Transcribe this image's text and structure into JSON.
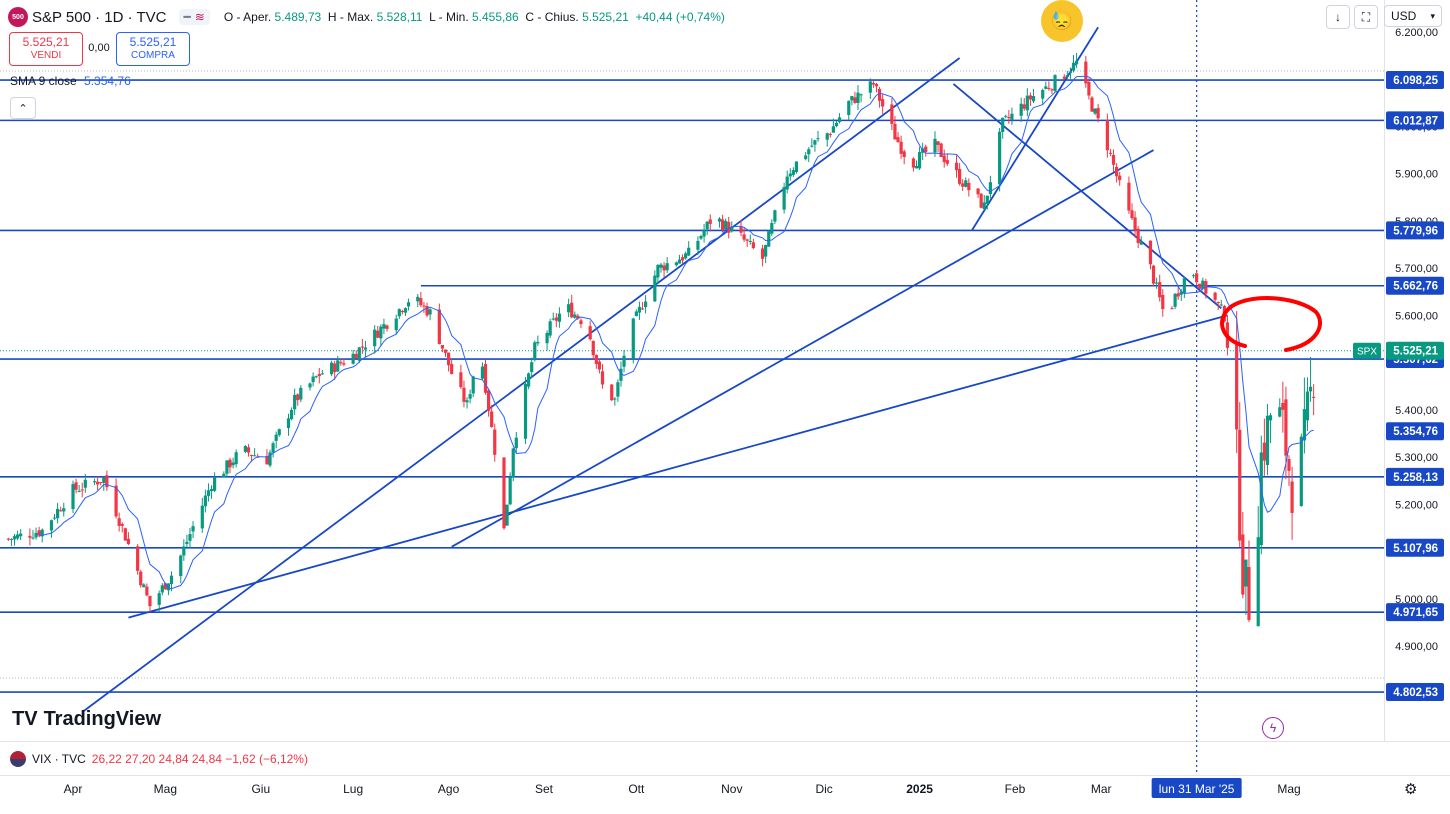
{
  "header": {
    "logo_text": "500",
    "symbol": "S&P 500 · 1D · TVC",
    "pill_left": "━",
    "pill_right": "≋",
    "ohlc": [
      {
        "label": "O - Aper.",
        "value": "5.489,73"
      },
      {
        "label": "H - Max.",
        "value": "5.528,11"
      },
      {
        "label": "L - Min.",
        "value": "5.455,86"
      },
      {
        "label": "C - Chius.",
        "value": "5.525,21"
      },
      {
        "label": "",
        "value": "+40,44 (+0,74%)"
      }
    ]
  },
  "trade": {
    "sell_price": "5.525,21",
    "sell_label": "VENDI",
    "spread": "0,00",
    "buy_price": "5.525,21",
    "buy_label": "COMPRA"
  },
  "indicator": {
    "name": "SMA 9 close",
    "value": "5.354,76"
  },
  "collapse_icon": "chevron-up-icon",
  "toolbar": {
    "currency": "USD",
    "download_icon": "arrow-down-icon",
    "maximize_icon": "maximize-icon",
    "settings_icon": "gear-icon"
  },
  "emoji": "sweat-face-icon",
  "brand": {
    "name": "TradingView"
  },
  "vix": {
    "symbol": "VIX · TVC",
    "values": "26,22  27,20  24,84  24,84  −1,62 (−6,12%)"
  },
  "colors": {
    "up": "#089981",
    "down": "#f23645",
    "line": "#1848c6",
    "sma": "#2962ff",
    "annotation": "#ff0000",
    "spx_tag": "#089981"
  },
  "chart_data": {
    "type": "candlestick",
    "title": "S&P 500 · 1D · TVC",
    "y_ticks": [
      4900,
      5000,
      5200,
      5300,
      5400,
      5600,
      5700,
      5800,
      5900,
      6000,
      6200
    ],
    "y_tick_labels": [
      "4.900,00",
      "5.000,00",
      "5.200,00",
      "5.300,00",
      "5.400,00",
      "5.600,00",
      "5.700,00",
      "5.800,00",
      "5.900,00",
      "6.000,00",
      "6.200,00"
    ],
    "ylim": [
      4760,
      6250
    ],
    "x_labels": [
      {
        "label": "Apr",
        "day": 0
      },
      {
        "label": "Mag",
        "day": 30
      },
      {
        "label": "Giu",
        "day": 61
      },
      {
        "label": "Lug",
        "day": 91
      },
      {
        "label": "Ago",
        "day": 122
      },
      {
        "label": "Set",
        "day": 153
      },
      {
        "label": "Ott",
        "day": 183
      },
      {
        "label": "Nov",
        "day": 214
      },
      {
        "label": "Dic",
        "day": 244
      },
      {
        "label": "2025",
        "day": 275,
        "bold": true
      },
      {
        "label": "Feb",
        "day": 306
      },
      {
        "label": "Mar",
        "day": 334
      },
      {
        "label": "Mag",
        "day": 395
      }
    ],
    "x_range_days": [
      -22,
      403
    ],
    "cursor": {
      "day": 365,
      "label": "lun 31 Mar '25"
    },
    "last_price": {
      "value": 5525.21,
      "label": "5.525,21",
      "tag": "SPX"
    },
    "horizontal_levels": [
      {
        "value": 6098.25,
        "label": "6.098,25"
      },
      {
        "value": 6012.87,
        "label": "6.012,87"
      },
      {
        "value": 5779.96,
        "label": "5.779,96"
      },
      {
        "value": 5662.76,
        "label": "5.662,76",
        "start_day": 113
      },
      {
        "value": 5507.62,
        "label": "5.507,62"
      },
      {
        "value": 5354.76,
        "label": "5.354,76",
        "line": false
      },
      {
        "value": 5258.13,
        "label": "5.258,13"
      },
      {
        "value": 5107.96,
        "label": "5.107,96"
      },
      {
        "value": 4971.65,
        "label": "4.971,65"
      },
      {
        "value": 4802.53,
        "label": "4.802,53"
      }
    ],
    "trend_lines": [
      {
        "from": [
          18,
          4960
        ],
        "to": [
          375,
          5600
        ]
      },
      {
        "from": [
          3,
          4760
        ],
        "to": [
          288,
          6145
        ]
      },
      {
        "from": [
          123,
          5110
        ],
        "to": [
          351,
          5950
        ]
      },
      {
        "from": [
          286,
          6090
        ],
        "to": [
          373,
          5615
        ]
      },
      {
        "from": [
          292,
          5780
        ],
        "to": [
          333,
          6210
        ]
      }
    ],
    "waypoints": [
      [
        -22,
        5125
      ],
      [
        -10,
        5145
      ],
      [
        0,
        5230
      ],
      [
        10,
        5255
      ],
      [
        18,
        5115
      ],
      [
        25,
        4985
      ],
      [
        33,
        5060
      ],
      [
        45,
        5245
      ],
      [
        55,
        5315
      ],
      [
        63,
        5295
      ],
      [
        72,
        5420
      ],
      [
        80,
        5475
      ],
      [
        90,
        5510
      ],
      [
        102,
        5585
      ],
      [
        110,
        5640
      ],
      [
        116,
        5605
      ],
      [
        124,
        5460
      ],
      [
        128,
        5410
      ],
      [
        132,
        5540
      ],
      [
        138,
        5270
      ],
      [
        140,
        5145
      ],
      [
        143,
        5325
      ],
      [
        150,
        5530
      ],
      [
        160,
        5620
      ],
      [
        167,
        5580
      ],
      [
        172,
        5450
      ],
      [
        176,
        5420
      ],
      [
        180,
        5550
      ],
      [
        190,
        5700
      ],
      [
        200,
        5730
      ],
      [
        208,
        5810
      ],
      [
        217,
        5765
      ],
      [
        224,
        5720
      ],
      [
        232,
        5900
      ],
      [
        240,
        5960
      ],
      [
        246,
        5990
      ],
      [
        252,
        6050
      ],
      [
        260,
        6090
      ],
      [
        267,
        5980
      ],
      [
        272,
        5920
      ],
      [
        280,
        5960
      ],
      [
        288,
        5890
      ],
      [
        296,
        5830
      ],
      [
        302,
        6005
      ],
      [
        311,
        6060
      ],
      [
        320,
        6100
      ],
      [
        326,
        6135
      ],
      [
        330,
        6060
      ],
      [
        336,
        5960
      ],
      [
        342,
        5830
      ],
      [
        350,
        5700
      ],
      [
        355,
        5590
      ],
      [
        358,
        5640
      ],
      [
        363,
        5700
      ],
      [
        367,
        5660
      ],
      [
        370,
        5640
      ],
      [
        374,
        5600
      ],
      [
        377,
        5420
      ],
      [
        380,
        5060
      ],
      [
        383,
        4960
      ],
      [
        386,
        5300
      ],
      [
        390,
        5420
      ],
      [
        393,
        5360
      ],
      [
        396,
        5240
      ],
      [
        399,
        5300
      ],
      [
        402,
        5430
      ],
      [
        404,
        5525
      ]
    ],
    "sma_period": 9
  }
}
